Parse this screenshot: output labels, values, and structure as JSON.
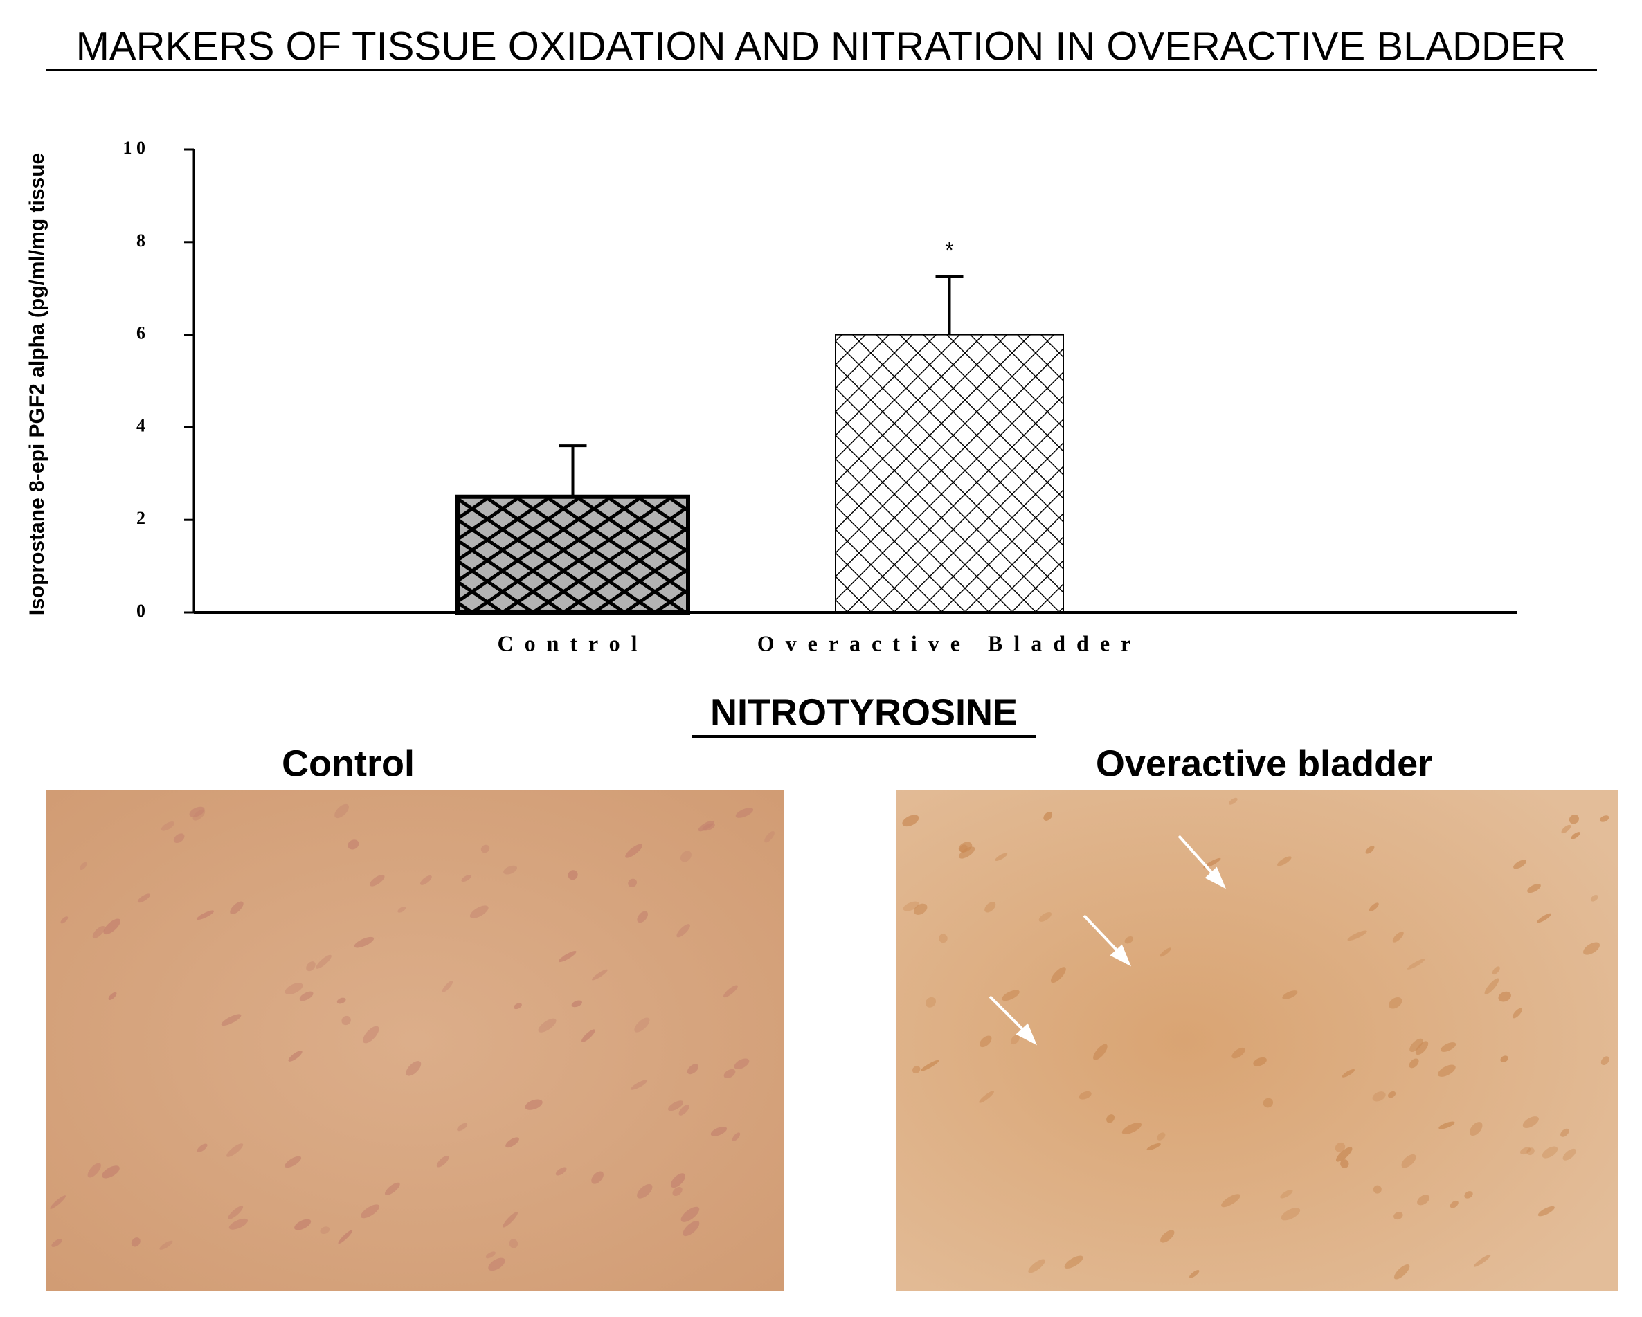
{
  "title": "MARKERS OF TISSUE OXIDATION AND NITRATION IN OVERACTIVE BLADDER",
  "chart_data": {
    "type": "bar",
    "y_label": "Isoprostane 8-epi PGF2 alpha (pg/ml/mg tissue",
    "categories": [
      "Control",
      "Overactive Bladder"
    ],
    "values": [
      2.5,
      6
    ],
    "errors": [
      1.1,
      1.25
    ],
    "colors": [
      "#b3b3b3",
      "#ffffff"
    ],
    "annotation": "*",
    "annotation_category": 1,
    "ylim": [
      0,
      10
    ],
    "yticks": [
      0,
      2,
      4,
      6,
      8,
      {
        "value": 10,
        "label": "1 0"
      }
    ],
    "grid": false
  },
  "figure": {
    "title": "NITROTYROSINE",
    "panels": [
      "Control",
      "Overactive bladder"
    ]
  }
}
